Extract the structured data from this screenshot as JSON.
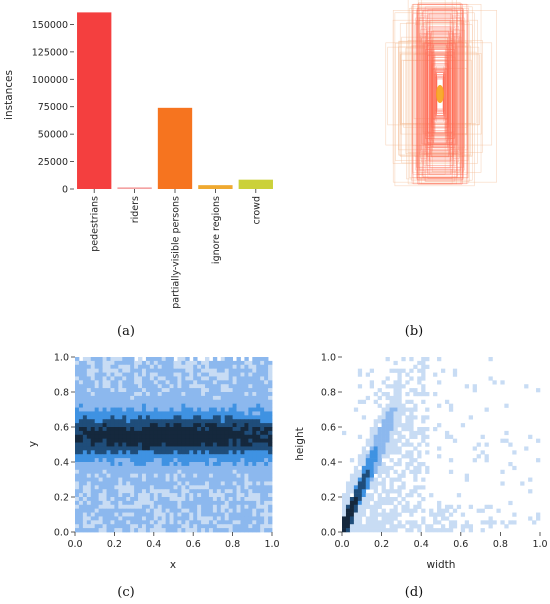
{
  "chart_data": [
    {
      "panel": "(a)",
      "type": "bar",
      "ylabel": "instances",
      "xlabel": "",
      "ylim": [
        0,
        165000
      ],
      "yticks": [
        0,
        25000,
        50000,
        75000,
        100000,
        125000,
        150000
      ],
      "categories": [
        "pedestrians",
        "riders",
        "partially-visible persons",
        "ignore regions",
        "crowd"
      ],
      "values": [
        161000,
        1500,
        74000,
        3500,
        8500
      ],
      "colors": [
        "#f43f3f",
        "#f4a2a2",
        "#f6741f",
        "#efa930",
        "#cbd13a"
      ],
      "grid": false
    },
    {
      "panel": "(b)",
      "type": "bounding-box-overlay",
      "colors": [
        "#ff6a55",
        "#f2b489"
      ],
      "axes": false
    },
    {
      "panel": "(c)",
      "type": "heatmap",
      "xlabel": "x",
      "ylabel": "y",
      "xlim": [
        0,
        1
      ],
      "ylim": [
        0,
        1
      ],
      "xticks": [
        "0.0",
        "0.2",
        "0.4",
        "0.6",
        "0.8",
        "1.0"
      ],
      "yticks": [
        "0.0",
        "0.2",
        "0.4",
        "0.6",
        "0.8",
        "1.0"
      ],
      "density_center_y": 0.55,
      "colormap": [
        "#c8dcf4",
        "#8cb8ee",
        "#3f92e2",
        "#1f4d7a",
        "#15283d"
      ]
    },
    {
      "panel": "(d)",
      "type": "heatmap",
      "xlabel": "width",
      "ylabel": "height",
      "xlim": [
        0,
        1
      ],
      "ylim": [
        0,
        1
      ],
      "xticks": [
        "0.0",
        "0.2",
        "0.4",
        "0.6",
        "0.8",
        "1.0"
      ],
      "yticks": [
        "0.0",
        "0.2",
        "0.4",
        "0.6",
        "0.8",
        "1.0"
      ],
      "colormap": [
        "#c8dcf4",
        "#8cb8ee",
        "#3f92e2",
        "#1f4d7a",
        "#15283d"
      ]
    }
  ],
  "panel_labels": {
    "a": "(a)",
    "b": "(b)",
    "c": "(c)",
    "d": "(d)"
  }
}
